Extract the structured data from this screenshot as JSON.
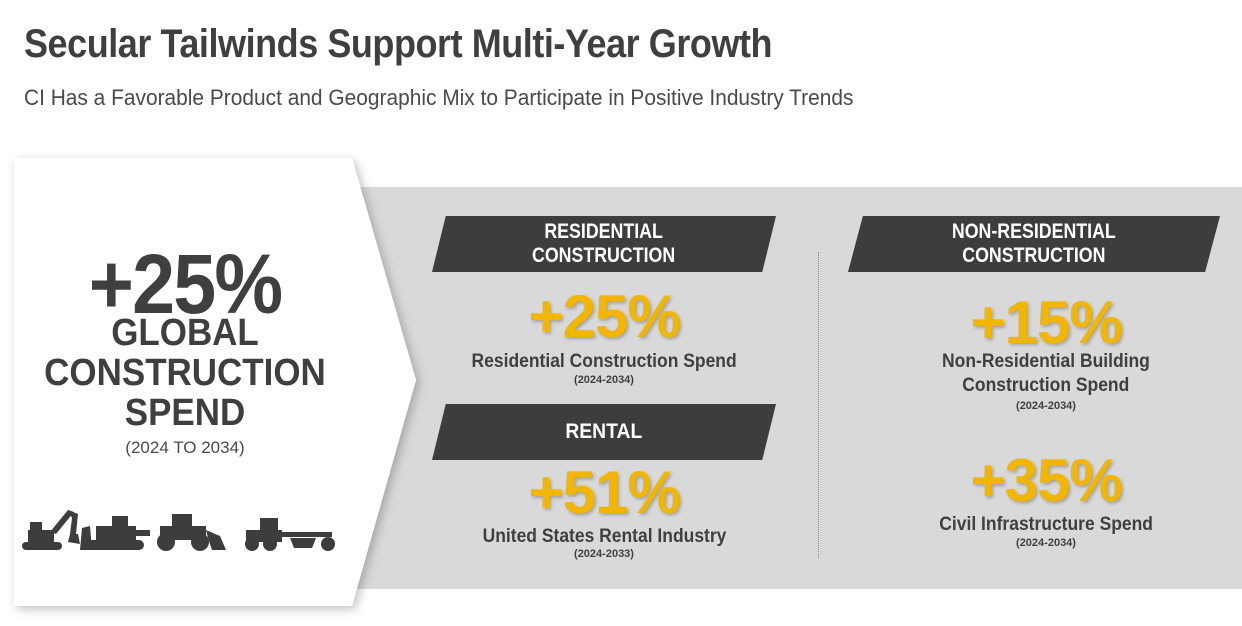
{
  "header": {
    "title": "Secular Tailwinds Support Multi-Year Growth",
    "subtitle": "CI Has a Favorable Product and Geographic Mix to Participate in Positive Industry Trends"
  },
  "global": {
    "percent": "+25%",
    "line1": "GLOBAL",
    "line2": "CONSTRUCTION",
    "line3": "SPEND",
    "years": "(2024 TO 2034)"
  },
  "residential": {
    "banner_line1": "RESIDENTIAL",
    "banner_line2": "CONSTRUCTION",
    "percent": "+25%",
    "label": "Residential Construction Spend",
    "years": "(2024-2034)"
  },
  "rental": {
    "banner": "RENTAL",
    "percent": "+51%",
    "label": "United States Rental Industry",
    "years": "(2024-2033)"
  },
  "non_residential": {
    "banner_line1": "NON-RESIDENTIAL",
    "banner_line2": "CONSTRUCTION",
    "percent": "+15%",
    "label_line1": "Non-Residential Building",
    "label_line2": "Construction Spend",
    "years": "(2024-2034)"
  },
  "civil": {
    "percent": "+35%",
    "label": "Civil Infrastructure Spend",
    "years": "(2024-2034)"
  },
  "colors": {
    "accent": "#f2b600",
    "dark": "#3d3d3d",
    "panel": "#d9d9d9"
  }
}
